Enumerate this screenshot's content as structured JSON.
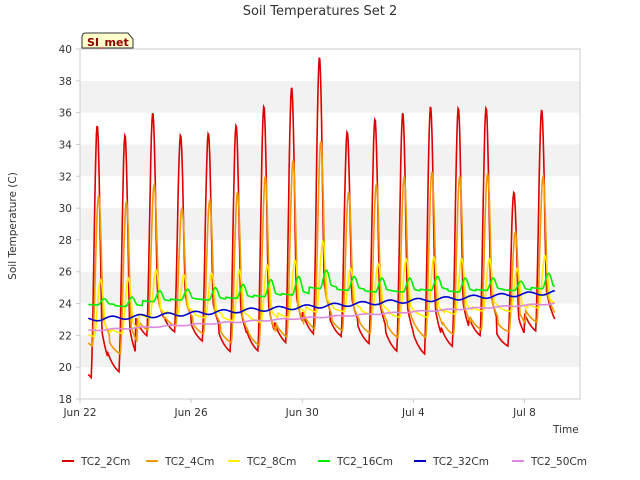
{
  "chart_data": {
    "type": "line",
    "title": "Soil Temperatures Set 2",
    "xlabel": "Time",
    "ylabel": "Soil Temperature (C)",
    "site_label": "SI_met",
    "x_ticks": [
      "Jun 22",
      "Jun 26",
      "Jun 30",
      "Jul 4",
      "Jul 8"
    ],
    "x_range_days": [
      22.0,
      40.0
    ],
    "ylim": [
      18,
      40
    ],
    "y_ticks": [
      18,
      20,
      22,
      24,
      26,
      28,
      30,
      32,
      34,
      36,
      38,
      40
    ],
    "grid": "horizontal bands",
    "legend_position": "bottom",
    "series": [
      {
        "name": "TC2_2Cm",
        "color": "#dd0000",
        "min": [
          18.8,
          19.2,
          21.5,
          21.8,
          21.2,
          20.5,
          20.5,
          21.0,
          21.5,
          21.5,
          21.0,
          20.5,
          20.3,
          20.8,
          21.5,
          21.0,
          21.8
        ],
        "max": [
          35.2,
          34.6,
          36.0,
          34.6,
          34.7,
          35.2,
          36.4,
          37.6,
          39.5,
          34.8,
          35.6,
          36.0,
          36.4,
          36.3,
          36.3,
          31.0,
          36.2
        ]
      },
      {
        "name": "TC2_4Cm",
        "color": "#ee9900",
        "min": [
          21.0,
          20.5,
          22.0,
          22.3,
          21.8,
          21.2,
          21.0,
          21.5,
          22.0,
          22.0,
          21.8,
          21.5,
          21.5,
          21.7,
          22.0,
          22.0,
          22.5
        ],
        "max": [
          30.8,
          30.4,
          31.5,
          30.0,
          30.5,
          31.0,
          32.0,
          33.0,
          34.2,
          31.0,
          31.5,
          32.0,
          32.3,
          32.0,
          32.2,
          28.5,
          32.0
        ]
      },
      {
        "name": "TC2_8Cm",
        "color": "#ffee00",
        "min": [
          21.8,
          22.0,
          23.0,
          23.2,
          23.0,
          22.8,
          22.7,
          23.0,
          23.3,
          23.4,
          23.2,
          23.0,
          23.0,
          23.2,
          23.4,
          23.4,
          23.6
        ],
        "max": [
          25.5,
          25.6,
          26.1,
          25.8,
          25.9,
          26.1,
          26.4,
          26.7,
          27.9,
          26.2,
          26.5,
          26.8,
          26.9,
          26.8,
          26.8,
          26.2,
          27.0
        ]
      },
      {
        "name": "TC2_16Cm",
        "color": "#00ee00",
        "min": [
          23.9,
          23.8,
          24.1,
          24.2,
          24.2,
          24.3,
          24.4,
          24.5,
          24.9,
          24.8,
          24.7,
          24.7,
          24.8,
          24.7,
          24.8,
          24.8,
          24.9
        ],
        "max": [
          24.3,
          24.4,
          24.8,
          24.9,
          25.0,
          25.2,
          25.5,
          25.7,
          26.1,
          25.7,
          25.6,
          25.6,
          25.7,
          25.6,
          25.6,
          25.4,
          25.9
        ]
      },
      {
        "name": "TC2_32Cm",
        "color": "#0000cc",
        "start": 23.0,
        "end": 24.7
      },
      {
        "name": "TC2_50Cm",
        "color": "#dd88dd",
        "start": 22.3,
        "end": 24.0
      }
    ]
  }
}
